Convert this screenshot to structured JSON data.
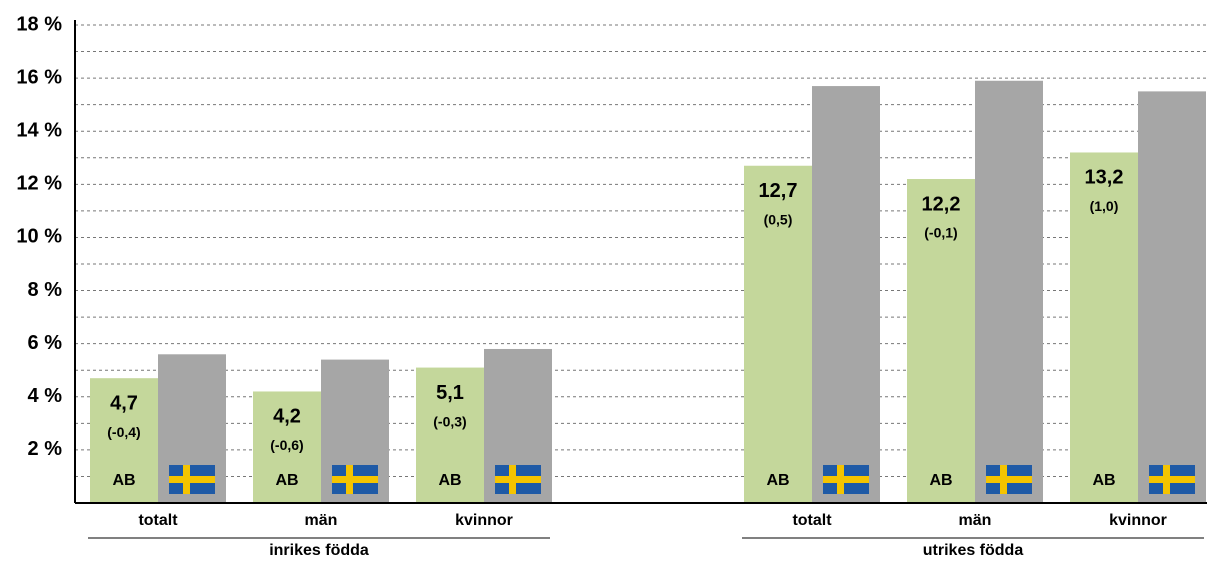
{
  "chart_data": {
    "type": "bar",
    "categories": [
      "totalt",
      "män",
      "kvinnor",
      "totalt",
      "män",
      "kvinnor"
    ],
    "groups": [
      {
        "label": "inrikes födda",
        "size": 3
      },
      {
        "label": "utrikes födda",
        "size": 3
      }
    ],
    "series": [
      {
        "name": "AB",
        "color": "#c4d79b",
        "values": [
          4.7,
          4.2,
          5.1,
          12.7,
          12.2,
          13.2
        ],
        "value_labels": [
          "4,7",
          "4,2",
          "5,1",
          "12,7",
          "12,2",
          "13,2"
        ],
        "changes": [
          -0.4,
          -0.6,
          -0.3,
          0.5,
          -0.1,
          1.0
        ],
        "change_labels": [
          "(-0,4)",
          "(-0,6)",
          "(-0,3)",
          "(0,5)",
          "(-0,1)",
          "(1,0)"
        ]
      },
      {
        "color": "#a6a6a6",
        "values": [
          5.6,
          5.4,
          5.8,
          15.7,
          15.9,
          15.5
        ]
      }
    ],
    "ylim": [
      0,
      18
    ],
    "yticks": [
      {
        "value": 2,
        "label": "2 %"
      },
      {
        "value": 4,
        "label": "4 %"
      },
      {
        "value": 6,
        "label": "6 %"
      },
      {
        "value": 8,
        "label": "8 %"
      },
      {
        "value": 10,
        "label": "10 %"
      },
      {
        "value": 12,
        "label": "12 %"
      },
      {
        "value": 14,
        "label": "14 %"
      },
      {
        "value": 16,
        "label": "16 %"
      },
      {
        "value": 18,
        "label": "18 %"
      }
    ],
    "minor_yticks": [
      1,
      3,
      5,
      7,
      9,
      11,
      13,
      15,
      17
    ],
    "grid": true
  }
}
